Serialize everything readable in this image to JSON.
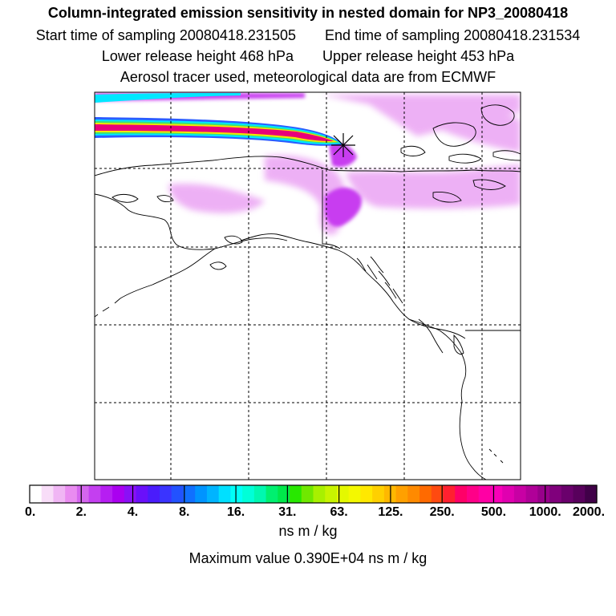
{
  "titles": {
    "line1": "Column-integrated emission sensitivity in nested domain for NP3_20080418",
    "start_label": "Start time of sampling 20080418.231505",
    "end_label": "End time of sampling 20080418.231534",
    "lower_label": "Lower release height  468 hPa",
    "upper_label": "Upper release height  453 hPa",
    "line4": "Aerosol tracer used, meteorological data are from ECMWF"
  },
  "colorbar": {
    "tick_labels": [
      "0.",
      "2.",
      "4.",
      "8.",
      "16.",
      "31.",
      "63.",
      "125.",
      "250.",
      "500.",
      "1000.",
      "2000."
    ],
    "colors": [
      "#ffffff",
      "#f8ddf8",
      "#f0b6f4",
      "#e98cf0",
      "#d466ee",
      "#c43ff0",
      "#b61ef2",
      "#aa00f0",
      "#8a10f6",
      "#6a10fa",
      "#4a1cfc",
      "#3a34ff",
      "#2252ff",
      "#1070ff",
      "#0094ff",
      "#00b4ff",
      "#00e0ff",
      "#00fff8",
      "#00ffd8",
      "#00f8b0",
      "#00f070",
      "#00e84a",
      "#28e800",
      "#70e800",
      "#a8f000",
      "#c8f400",
      "#e4f800",
      "#f4f800",
      "#ffe800",
      "#ffd000",
      "#ffb800",
      "#ffa000",
      "#ff8a00",
      "#ff6a00",
      "#ff4a10",
      "#ff2030",
      "#ff0068",
      "#ff0088",
      "#ff00a4",
      "#f800b8",
      "#e000b0",
      "#c800a4",
      "#b00098",
      "#98008a",
      "#80007c",
      "#6a006c",
      "#58005c",
      "#400048"
    ],
    "units": "ns m / kg",
    "max_value_text": "Maximum value  0.390E+04 ns m / kg"
  },
  "map": {
    "release_marker": "star-icon",
    "plume_colors": {
      "core": "#e8007a",
      "edge_yellow": "#f2e600",
      "edge_green": "#40e070",
      "edge_cyan": "#00e8ff",
      "edge_blue": "#2a5cff",
      "faint": "#e896f2",
      "mid": "#c83cf0"
    }
  }
}
